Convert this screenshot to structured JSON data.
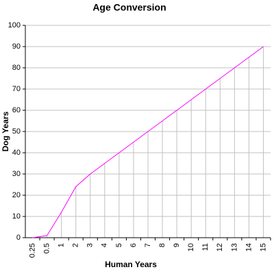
{
  "chart_data": {
    "type": "line",
    "title": "Age Conversion",
    "x_label": "Human Years",
    "y_label": "Dog Years",
    "categories": [
      "0.25",
      "0.5",
      "1",
      "2",
      "3",
      "4",
      "5",
      "6",
      "7",
      "8",
      "9",
      "10",
      "11",
      "12",
      "13",
      "14",
      "15"
    ],
    "values": [
      0,
      1,
      12,
      24,
      30,
      35,
      40,
      45,
      50,
      55,
      60,
      65,
      70,
      75,
      80,
      85,
      90
    ],
    "color": "#ff00ff",
    "ylim": [
      0,
      100
    ],
    "yticks": [
      0,
      10,
      20,
      30,
      40,
      50,
      60,
      70,
      80,
      90,
      100
    ],
    "grid": true,
    "drop_lines": true
  }
}
